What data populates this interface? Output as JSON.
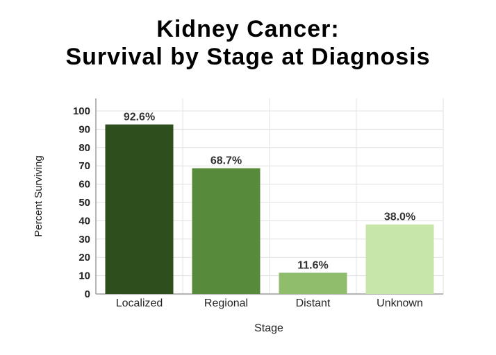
{
  "chart_data": {
    "type": "bar",
    "title_line1": "Kidney Cancer:",
    "title_line2": "Survival by Stage at Diagnosis",
    "xlabel": "Stage",
    "ylabel": "Percent Surviving",
    "categories": [
      "Localized",
      "Regional",
      "Distant",
      "Unknown"
    ],
    "values": [
      92.6,
      68.7,
      11.6,
      38.0
    ],
    "value_labels": [
      "92.6%",
      "68.7%",
      "11.6%",
      "38.0%"
    ],
    "colors": [
      "#2e4f1d",
      "#578a3a",
      "#8fbd6b",
      "#c7e6a9"
    ],
    "ylim": [
      0,
      100
    ],
    "yticks": [
      "0",
      "10",
      "20",
      "30",
      "40",
      "50",
      "60",
      "70",
      "80",
      "90",
      "100"
    ],
    "grid": true,
    "grid_color": "#e0e0e0",
    "axis_color": "#9e9e9e"
  }
}
